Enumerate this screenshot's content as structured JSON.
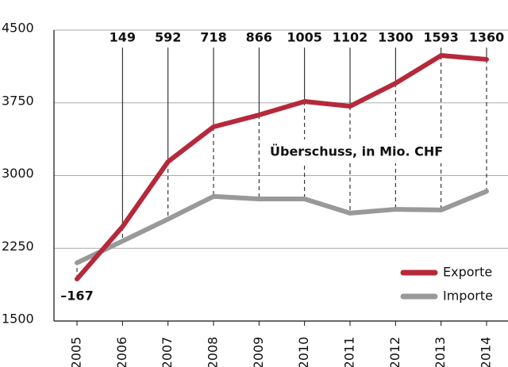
{
  "chart_data": {
    "type": "line",
    "x": [
      "2005",
      "2006",
      "2007",
      "2008",
      "2009",
      "2010",
      "2011",
      "2012",
      "2013",
      "2014"
    ],
    "series": [
      {
        "name": "Exporte",
        "color": "#b5293a",
        "values": [
          1933,
          2473,
          3143,
          3503,
          3625,
          3764,
          3715,
          3952,
          4238,
          4198
        ]
      },
      {
        "name": "Importe",
        "color": "#999999",
        "values": [
          2100,
          2324,
          2551,
          2785,
          2759,
          2759,
          2613,
          2652,
          2645,
          2838
        ]
      }
    ],
    "surplus": {
      "label": "Überschuss, in Mio. CHF",
      "values": [
        -167,
        149,
        592,
        718,
        866,
        1005,
        1102,
        1300,
        1593,
        1360
      ],
      "value_labels": [
        "–167",
        "149",
        "592",
        "718",
        "866",
        "1005",
        "1102",
        "1300",
        "1593",
        "1360"
      ]
    },
    "ylim": [
      1500,
      4500
    ],
    "yticks": [
      1500,
      2250,
      3000,
      3750,
      4500
    ],
    "grid": true,
    "legend": "lower right"
  }
}
